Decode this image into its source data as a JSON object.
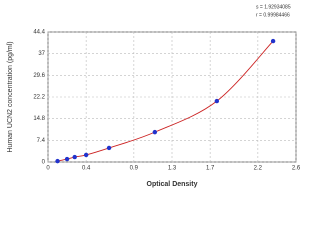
{
  "chart_data": {
    "type": "scatter",
    "x_label": "Optical Density",
    "y_label": "Human UCN2 concentration (pg/ml)",
    "annotations": [
      "s = 1.92934085",
      "r = 0.99984466"
    ],
    "series": [
      {
        "color": "#2233cc",
        "line_color": "#cc2222",
        "x": [
          0.1,
          0.2,
          0.28,
          0.4,
          0.64,
          1.12,
          1.77,
          2.36
        ],
        "values": [
          0.3,
          1.0,
          1.7,
          2.4,
          4.8,
          10.2,
          20.8,
          41.3
        ]
      }
    ],
    "xlim": [
      0,
      2.6
    ],
    "xticks": [
      0,
      0.4,
      0.9,
      1.3,
      1.7,
      2.2,
      2.6
    ],
    "ylim": [
      0,
      44.4
    ],
    "yticks": [
      0,
      7.4,
      14.8,
      22.2,
      29.6,
      37,
      44.4
    ],
    "grid": true
  }
}
